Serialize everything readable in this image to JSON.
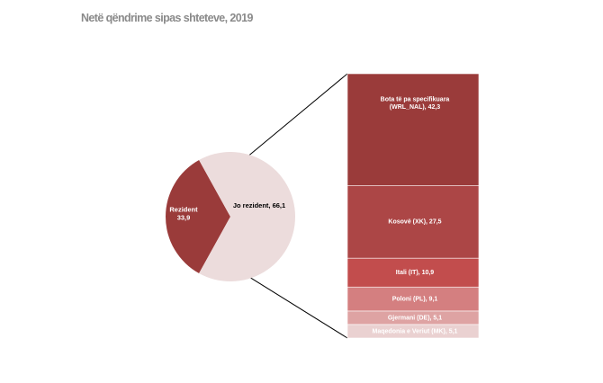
{
  "title": "Netë qëndrime sipas shteteve, 2019",
  "chart_data": {
    "type": "bar-of-pie",
    "pie": {
      "slices": [
        {
          "label": "Rezident",
          "value": 33.9,
          "display": "Rezident\n33,9",
          "color": "#9a3b3a"
        },
        {
          "label": "Jo rezident",
          "value": 66.1,
          "display": "Jo rezident, 66,1",
          "color": "#ecdcdc"
        }
      ]
    },
    "bar": {
      "segments": [
        {
          "label": "Bota të pa specifikuara (WRL_NAL)",
          "value": 42.3,
          "display": "Bota të pa specifikuara\n(WRL_NAL), 42,3",
          "color": "#9a3b3a"
        },
        {
          "label": "Kosovë (XK)",
          "value": 27.5,
          "display": "Kosovë (XK), 27,5",
          "color": "#ac4646"
        },
        {
          "label": "Itali (IT)",
          "value": 10.9,
          "display": "Itali (IT), 10,9",
          "color": "#c24d4d"
        },
        {
          "label": "Poloni (PL)",
          "value": 9.1,
          "display": "Poloni (PL), 9,1",
          "color": "#d47f80"
        },
        {
          "label": "Gjermani (DE)",
          "value": 5.1,
          "display": "Gjermani (DE), 5,1",
          "color": "#dea3a3"
        },
        {
          "label": "Maqedonia e Veriut (MK)",
          "value": 5.1,
          "display": "Maqedonia e Veriut (MK), 5,1",
          "color": "#ead1d1"
        }
      ]
    }
  }
}
